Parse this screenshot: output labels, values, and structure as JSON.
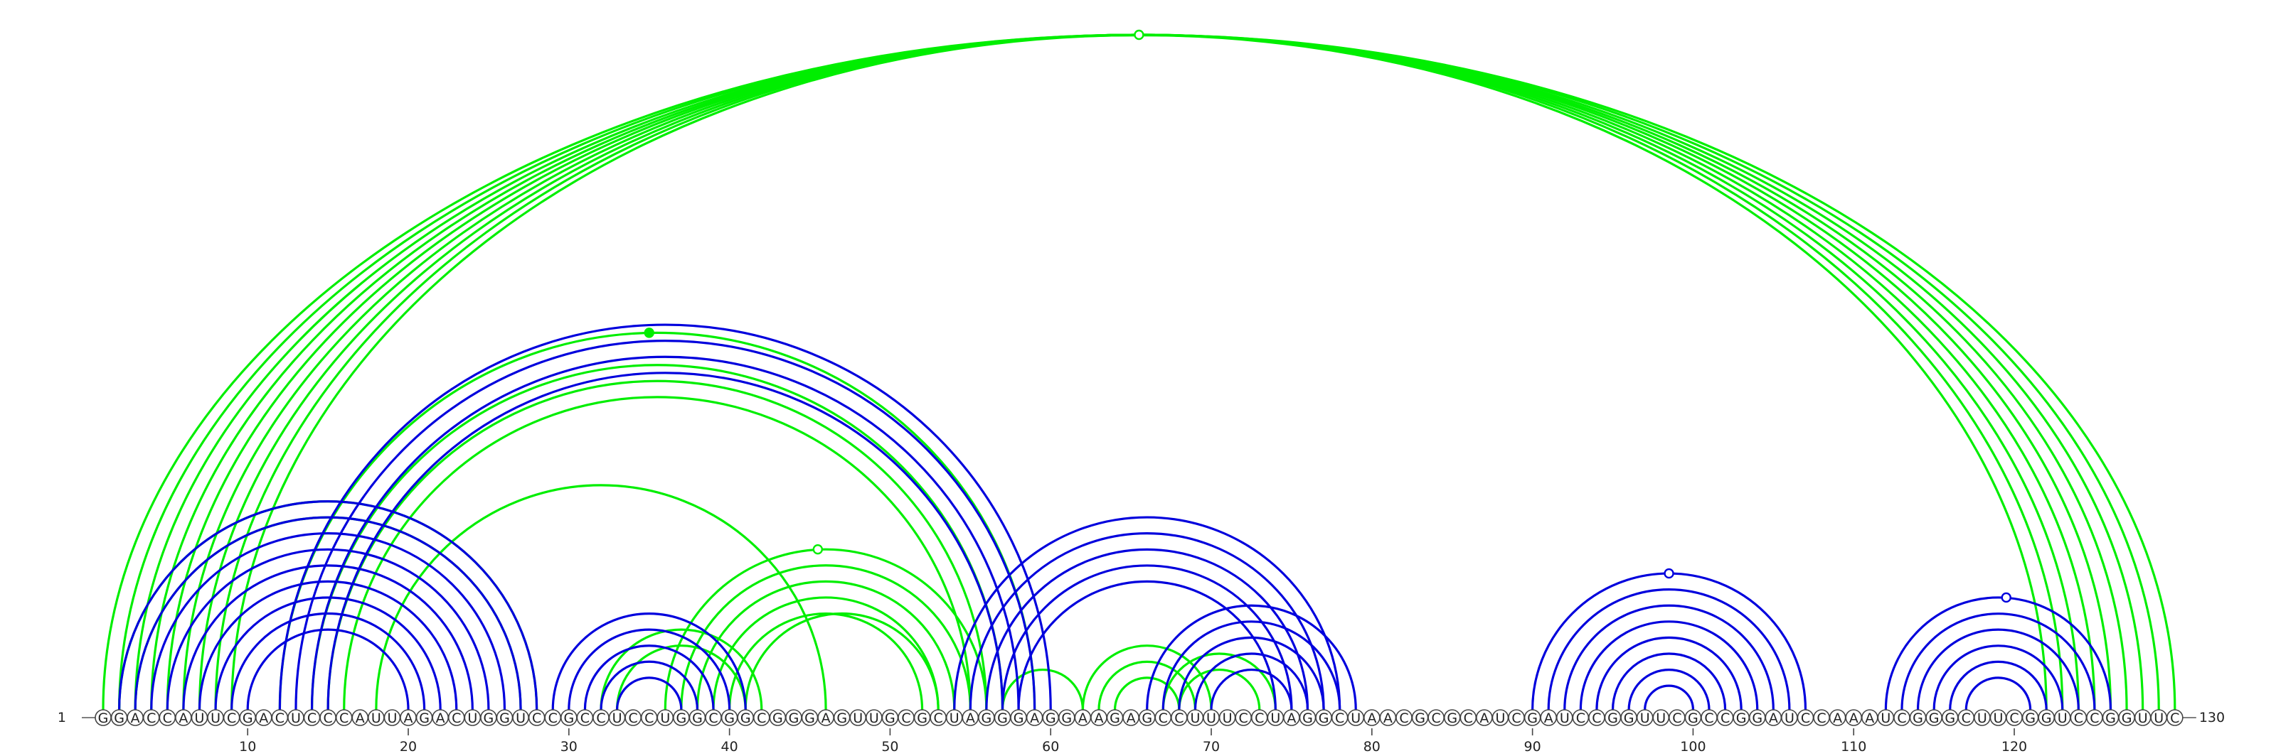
{
  "sequence": "GGACCAUUCGACUCCCAUUAGACUGGUCCGCCUCCUGGCGGCGGGAGUUGCGCUAGGGAGGAAGAGCCUUUCCUAGGCUAACGCGCAUCGAUCCGGUUCGCCGGAUCCAAAUCGGGCUUCGGUCCGGUUC",
  "start_label": "1",
  "end_label": "130",
  "ticks": [
    "10",
    "20",
    "30",
    "40",
    "50",
    "60",
    "70",
    "80",
    "90",
    "100",
    "110",
    "120"
  ],
  "colors": {
    "upper": "#00ee00",
    "lower": "#0000dd"
  },
  "chart_data": {
    "type": "arc-diagram",
    "sequence_length": 130,
    "tick_positions": [
      10,
      20,
      30,
      40,
      50,
      60,
      70,
      80,
      90,
      100,
      110,
      120
    ],
    "green_pairs": [
      [
        1,
        130
      ],
      [
        2,
        129
      ],
      [
        3,
        128
      ],
      [
        4,
        127
      ],
      [
        5,
        126
      ],
      [
        6,
        125
      ],
      [
        7,
        124
      ],
      [
        8,
        123
      ],
      [
        9,
        122
      ],
      [
        2,
        28
      ],
      [
        3,
        27
      ],
      [
        12,
        59
      ],
      [
        14,
        57
      ],
      [
        15,
        56
      ],
      [
        16,
        55
      ],
      [
        18,
        46
      ],
      [
        32,
        42
      ],
      [
        33,
        41
      ],
      [
        36,
        56
      ],
      [
        37,
        55
      ],
      [
        38,
        54
      ],
      [
        39,
        53
      ],
      [
        40,
        52
      ],
      [
        41,
        53
      ],
      [
        57,
        62
      ],
      [
        62,
        70
      ],
      [
        63,
        69
      ],
      [
        64,
        68
      ],
      [
        67,
        74
      ],
      [
        68,
        73
      ]
    ],
    "blue_pairs": [
      [
        2,
        28
      ],
      [
        3,
        27
      ],
      [
        4,
        26
      ],
      [
        5,
        25
      ],
      [
        6,
        24
      ],
      [
        7,
        23
      ],
      [
        8,
        22
      ],
      [
        9,
        21
      ],
      [
        10,
        20
      ],
      [
        12,
        60
      ],
      [
        13,
        59
      ],
      [
        14,
        58
      ],
      [
        15,
        57
      ],
      [
        29,
        41
      ],
      [
        30,
        40
      ],
      [
        31,
        39
      ],
      [
        32,
        38
      ],
      [
        33,
        37
      ],
      [
        54,
        78
      ],
      [
        55,
        77
      ],
      [
        56,
        76
      ],
      [
        57,
        75
      ],
      [
        58,
        74
      ],
      [
        66,
        79
      ],
      [
        67,
        78
      ],
      [
        68,
        77
      ],
      [
        69,
        76
      ],
      [
        70,
        75
      ],
      [
        90,
        107
      ],
      [
        91,
        106
      ],
      [
        92,
        105
      ],
      [
        93,
        104
      ],
      [
        94,
        103
      ],
      [
        95,
        102
      ],
      [
        96,
        101
      ],
      [
        97,
        100
      ],
      [
        112,
        126
      ],
      [
        113,
        125
      ],
      [
        114,
        124
      ],
      [
        115,
        123
      ],
      [
        116,
        122
      ],
      [
        117,
        121
      ]
    ],
    "markers": [
      {
        "series": "green",
        "at": 65.5,
        "type": "open-circle"
      },
      {
        "series": "green",
        "at": 45.5,
        "type": "open-circle"
      },
      {
        "series": "green",
        "at": 35,
        "type": "filled-dot"
      },
      {
        "series": "blue",
        "at": 98.5,
        "type": "open-circle"
      },
      {
        "series": "blue",
        "at": 119.5,
        "type": "open-circle"
      }
    ]
  }
}
